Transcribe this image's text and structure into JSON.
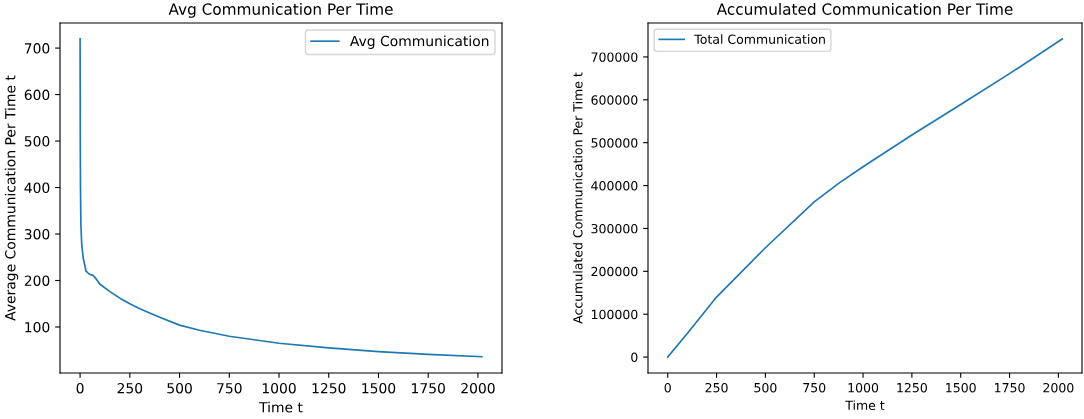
{
  "chart_data": [
    {
      "type": "line",
      "title": "Avg Communication Per Time",
      "xlabel": "Time t",
      "ylabel": "Average Communication Per Time t",
      "legend": "top right",
      "series": [
        {
          "name": "Avg Communication",
          "color": "#1f77b4",
          "x": [
            0,
            1,
            2,
            4,
            8,
            15,
            30,
            45,
            65,
            80,
            100,
            150,
            200,
            250,
            300,
            400,
            500,
            600,
            750,
            1000,
            1250,
            1500,
            1750,
            2020
          ],
          "values": [
            720,
            500,
            400,
            320,
            280,
            250,
            220,
            214,
            211,
            204,
            192,
            176,
            162,
            150,
            139,
            121,
            104,
            93,
            80,
            65,
            55,
            47,
            41,
            36
          ]
        }
      ],
      "xlim": [
        -101,
        2121
      ],
      "ylim": [
        1,
        754
      ],
      "xticks": [
        0,
        250,
        500,
        750,
        1000,
        1250,
        1500,
        1750,
        2000
      ],
      "yticks": [
        100,
        200,
        300,
        400,
        500,
        600,
        700
      ]
    },
    {
      "type": "line",
      "title": "Accumulated Communication Per Time",
      "xlabel": "Time t",
      "ylabel": "Accumulated Communication Per Time t",
      "legend": "top left",
      "series": [
        {
          "name": "Total Communication",
          "color": "#1f77b4",
          "x": [
            0,
            100,
            250,
            500,
            750,
            875,
            1000,
            1250,
            1500,
            1750,
            2020
          ],
          "values": [
            0,
            55000,
            140000,
            255000,
            362000,
            405000,
            444000,
            518000,
            589000,
            661000,
            742000
          ]
        }
      ],
      "xlim": [
        -101,
        2121
      ],
      "ylim": [
        -37100,
        779100
      ],
      "xticks": [
        0,
        250,
        500,
        750,
        1000,
        1250,
        1500,
        1750,
        2000
      ],
      "yticks": [
        0,
        100000,
        200000,
        300000,
        400000,
        500000,
        600000,
        700000
      ]
    }
  ]
}
